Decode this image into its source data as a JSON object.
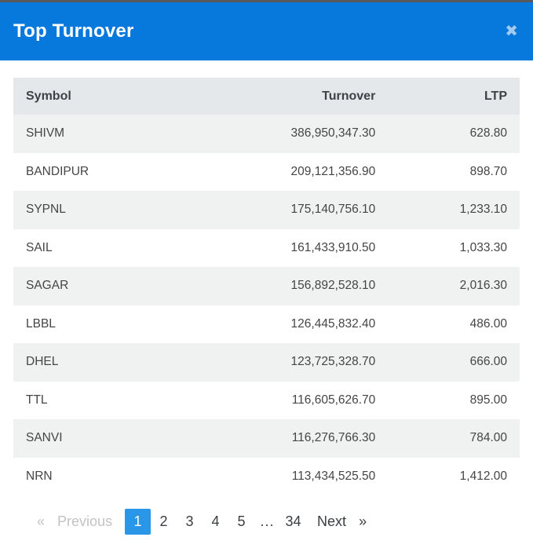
{
  "modal": {
    "title": "Top Turnover",
    "close_icon_glyph": "✖"
  },
  "table": {
    "columns": {
      "symbol": "Symbol",
      "turnover": "Turnover",
      "ltp": "LTP"
    },
    "rows": [
      {
        "symbol": "SHIVM",
        "turnover": "386,950,347.30",
        "ltp": "628.80"
      },
      {
        "symbol": "BANDIPUR",
        "turnover": "209,121,356.90",
        "ltp": "898.70"
      },
      {
        "symbol": "SYPNL",
        "turnover": "175,140,756.10",
        "ltp": "1,233.10"
      },
      {
        "symbol": "SAIL",
        "turnover": "161,433,910.50",
        "ltp": "1,033.30"
      },
      {
        "symbol": "SAGAR",
        "turnover": "156,892,528.10",
        "ltp": "2,016.30"
      },
      {
        "symbol": "LBBL",
        "turnover": "126,445,832.40",
        "ltp": "486.00"
      },
      {
        "symbol": "DHEL",
        "turnover": "123,725,328.70",
        "ltp": "666.00"
      },
      {
        "symbol": "TTL",
        "turnover": "116,605,626.70",
        "ltp": "895.00"
      },
      {
        "symbol": "SANVI",
        "turnover": "116,276,766.30",
        "ltp": "784.00"
      },
      {
        "symbol": "NRN",
        "turnover": "113,434,525.50",
        "ltp": "1,412.00"
      }
    ]
  },
  "pagination": {
    "prev_arrow": "«",
    "prev_label": "Previous",
    "pages": [
      "1",
      "2",
      "3",
      "4",
      "5"
    ],
    "ellipsis": "...",
    "last_page": "34",
    "next_label": "Next",
    "next_arrow": "»",
    "active_page": "1"
  },
  "colors": {
    "header_blue": "#0778dc",
    "active_page_blue": "#2a96e8",
    "close_icon_color": "#a3cbef",
    "table_header_bg": "#e5e8ea",
    "stripe_bg": "#f0f1f1",
    "heading_text": "#3d4249",
    "cell_text": "#454545",
    "muted_text": "#c3c3c3",
    "top_strip": "#58595c"
  }
}
